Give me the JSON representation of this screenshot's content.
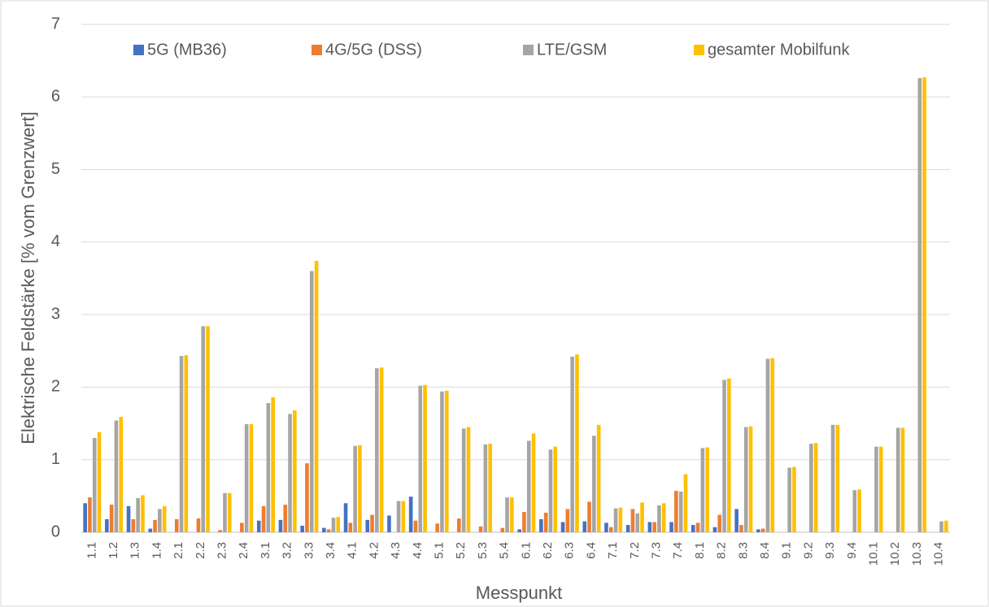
{
  "chart_data": {
    "type": "bar",
    "x_label": "Messpunkt",
    "y_label": "Elektrische Feldstärke [% vom Grenzwert]",
    "categories": [
      "1.1",
      "1.2",
      "1.3",
      "1.4",
      "2.1",
      "2.2",
      "2.3",
      "2.4",
      "3.1",
      "3.2",
      "3.3",
      "3.4",
      "4.1",
      "4.2",
      "4.3",
      "4.4",
      "5.1",
      "5.2",
      "5.3",
      "5.4",
      "6.1",
      "6.2",
      "6.3",
      "6.4",
      "7.1",
      "7.2",
      "7.3",
      "7.4",
      "8.1",
      "8.2",
      "8.3",
      "8.4",
      "9.1",
      "9.2",
      "9.3",
      "9.4",
      "10.1",
      "10.2",
      "10.3",
      "10.4"
    ],
    "series": [
      {
        "name": "5G (MB36)",
        "color": "#4472c4",
        "values": [
          0.4,
          0.18,
          0.36,
          0.05,
          0,
          0,
          0,
          0,
          0.16,
          0.17,
          0.09,
          0.06,
          0.4,
          0.17,
          0.23,
          0.49,
          0,
          0,
          0,
          0,
          0.04,
          0.18,
          0.14,
          0.15,
          0.13,
          0.1,
          0.14,
          0.14,
          0.1,
          0.07,
          0.32,
          0.04,
          0,
          0,
          0,
          0,
          0,
          0,
          0,
          0
        ]
      },
      {
        "name": "4G/5G (DSS)",
        "color": "#ed7d31",
        "values": [
          0.48,
          0.38,
          0.18,
          0.17,
          0.18,
          0.19,
          0.03,
          0.13,
          0.36,
          0.38,
          0.95,
          0.04,
          0.13,
          0.24,
          0,
          0.16,
          0.12,
          0.19,
          0.08,
          0.06,
          0.28,
          0.27,
          0.32,
          0.42,
          0.07,
          0.32,
          0.14,
          0.57,
          0.13,
          0.24,
          0.1,
          0.05,
          0,
          0,
          0,
          0,
          0,
          0,
          0,
          0
        ]
      },
      {
        "name": "LTE/GSM",
        "color": "#a5a5a5",
        "values": [
          1.3,
          1.54,
          0.47,
          0.32,
          2.43,
          2.84,
          0.54,
          1.49,
          1.78,
          1.63,
          3.6,
          0.2,
          1.19,
          2.26,
          0.43,
          2.02,
          1.94,
          1.43,
          1.21,
          0.48,
          1.26,
          1.14,
          2.42,
          1.33,
          0.33,
          0.26,
          0.37,
          0.56,
          1.16,
          2.1,
          1.45,
          2.39,
          0.89,
          1.22,
          1.48,
          0.58,
          1.18,
          1.44,
          6.26,
          0.15
        ]
      },
      {
        "name": "gesamter Mobilfunk",
        "color": "#ffc000",
        "values": [
          1.38,
          1.59,
          0.51,
          0.36,
          2.44,
          2.84,
          0.54,
          1.49,
          1.86,
          1.68,
          3.74,
          0.21,
          1.2,
          2.27,
          0.43,
          2.03,
          1.95,
          1.45,
          1.22,
          0.48,
          1.36,
          1.18,
          2.45,
          1.48,
          0.34,
          0.41,
          0.4,
          0.8,
          1.17,
          2.12,
          1.46,
          2.4,
          0.9,
          1.23,
          1.48,
          0.59,
          1.18,
          1.44,
          6.27,
          0.16
        ]
      }
    ],
    "ylim": [
      0,
      7
    ],
    "yticks": [
      0,
      1,
      2,
      3,
      4,
      5,
      6,
      7
    ],
    "grid": true,
    "legend": "top"
  }
}
